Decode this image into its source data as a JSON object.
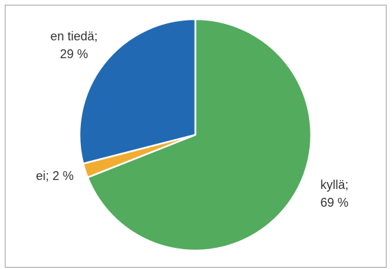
{
  "chart_data": {
    "type": "pie",
    "title": "",
    "slices": [
      {
        "label_line1": "kyllä;",
        "label_line2": "69 %",
        "value": 69,
        "color": "#53ab5d"
      },
      {
        "label_line1": "ei; 2 %",
        "label_line2": "",
        "value": 2,
        "color": "#f2ac32"
      },
      {
        "label_line1": "en tiedä;",
        "label_line2": "29 %",
        "value": 29,
        "color": "#2169b3"
      }
    ]
  }
}
